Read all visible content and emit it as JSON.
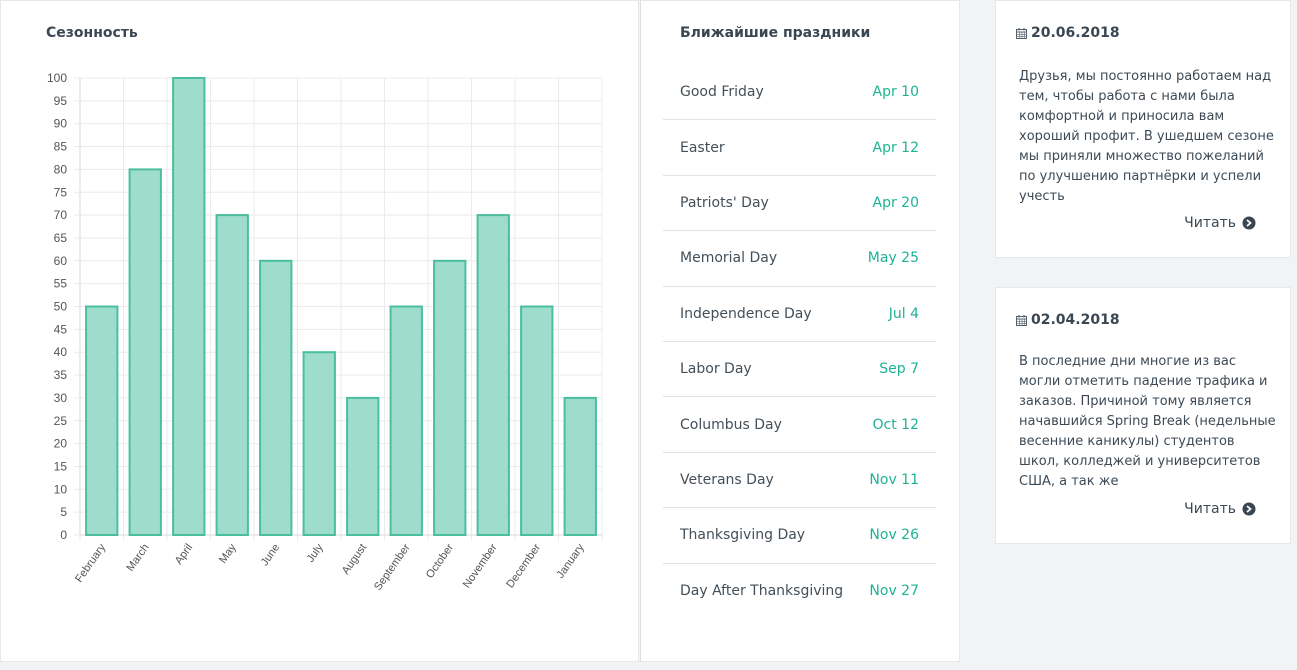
{
  "seasonality": {
    "title": "Сезонность"
  },
  "chart_data": {
    "type": "bar",
    "categories": [
      "February",
      "March",
      "April",
      "May",
      "June",
      "July",
      "August",
      "September",
      "October",
      "November",
      "December",
      "January"
    ],
    "values": [
      50,
      80,
      100,
      70,
      60,
      40,
      30,
      50,
      60,
      70,
      50,
      30
    ],
    "title": "",
    "xlabel": "",
    "ylabel": "",
    "ylim": [
      0,
      100
    ],
    "ytick_step": 5,
    "grid": true,
    "legend": "none",
    "bar_fill": "#9edccc",
    "bar_stroke": "#4bbf9d"
  },
  "holidays": {
    "title": "Ближайшие праздники",
    "items": [
      {
        "name": "Good Friday",
        "date": "Apr 10"
      },
      {
        "name": "Easter",
        "date": "Apr 12"
      },
      {
        "name": "Patriots' Day",
        "date": "Apr 20"
      },
      {
        "name": "Memorial Day",
        "date": "May 25"
      },
      {
        "name": "Independence Day",
        "date": "Jul 4"
      },
      {
        "name": "Labor Day",
        "date": "Sep 7"
      },
      {
        "name": "Columbus Day",
        "date": "Oct 12"
      },
      {
        "name": "Veterans Day",
        "date": "Nov 11"
      },
      {
        "name": "Thanksgiving Day",
        "date": "Nov 26"
      },
      {
        "name": "Day After Thanksgiving",
        "date": "Nov 27"
      }
    ]
  },
  "news": [
    {
      "date": "20.06.2018",
      "text": "Друзья, мы постоянно работаем над тем, чтобы работа с нами была комфортной и приносила вам хороший профит. В ушедшем сезоне мы приняли множество пожеланий по улучшению партнёрки и успели учесть",
      "read_label": "Читать"
    },
    {
      "date": "02.04.2018",
      "text": "В последние дни многие из вас могли отметить падение трафика и заказов. Причиной тому является начавшийся Spring Break (недельные весенние каникулы) студентов школ, колледжей и университетов США, а так же",
      "read_label": "Читать"
    }
  ],
  "colors": {
    "accent": "#1cb394",
    "text": "#3d4a55"
  }
}
